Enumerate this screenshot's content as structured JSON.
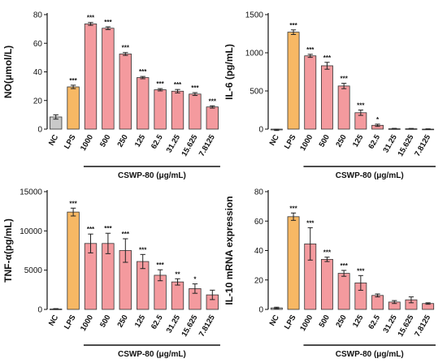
{
  "chart_data": [
    {
      "type": "bar",
      "ylabel": "NO(μmol/L)",
      "ylim": [
        0,
        80
      ],
      "yticks": [
        0,
        20,
        40,
        60,
        80
      ],
      "categories": [
        "NC",
        "LPS",
        "1000",
        "500",
        "250",
        "125",
        "62.5",
        "31.25",
        "15.625",
        "7.8125"
      ],
      "values": [
        8.5,
        29.5,
        73.5,
        70.5,
        52.5,
        36,
        27.5,
        26.5,
        24.5,
        15.5
      ],
      "errors": [
        1.5,
        1.2,
        1.0,
        1.0,
        1.0,
        0.8,
        0.8,
        1.2,
        1.0,
        0.8
      ],
      "significance": [
        "",
        "***",
        "***",
        "***",
        "***",
        "***",
        "***",
        "***",
        "***",
        "***"
      ],
      "bar_colors": [
        "#c9c9c9",
        "#f7b864",
        "#f49a9e",
        "#f49a9e",
        "#f49a9e",
        "#f49a9e",
        "#f49a9e",
        "#f49a9e",
        "#f49a9e",
        "#f49a9e"
      ],
      "group_label": "CSWP-80 (μg/mL)",
      "group_from": 2
    },
    {
      "type": "bar",
      "ylabel": "IL-6 (pg/mL)",
      "ylim": [
        0,
        1500
      ],
      "yticks": [
        0,
        500,
        1000,
        1500
      ],
      "categories": [
        "NC",
        "LPS",
        "1000",
        "500",
        "250",
        "125",
        "62.5",
        "31.25",
        "15.625",
        "7.8125"
      ],
      "values": [
        -10,
        1270,
        960,
        830,
        565,
        215,
        50,
        5,
        5,
        0
      ],
      "errors": [
        8,
        30,
        20,
        45,
        35,
        35,
        15,
        5,
        4,
        4
      ],
      "significance": [
        "",
        "***",
        "***",
        "***",
        "***",
        "***",
        "*",
        "",
        "",
        ""
      ],
      "bar_colors": [
        "#c9c9c9",
        "#f7b864",
        "#f49a9e",
        "#f49a9e",
        "#f49a9e",
        "#f49a9e",
        "#f49a9e",
        "#f49a9e",
        "#f49a9e",
        "#f49a9e"
      ],
      "group_label": "CSWP-80 (μg/mL)",
      "group_from": 2
    },
    {
      "type": "bar",
      "ylabel": "TNF-α(pg/mL)",
      "ylim": [
        0,
        15000
      ],
      "yticks": [
        0,
        5000,
        10000,
        15000
      ],
      "categories": [
        "NC",
        "LPS",
        "1000",
        "500",
        "250",
        "125",
        "62.5",
        "31.25",
        "15.625",
        "7.8125"
      ],
      "values": [
        50,
        12400,
        8400,
        8400,
        7500,
        6100,
        4350,
        3500,
        2650,
        1850
      ],
      "errors": [
        50,
        500,
        1200,
        1300,
        1500,
        900,
        700,
        400,
        600,
        600
      ],
      "significance": [
        "",
        "***",
        "***",
        "***",
        "***",
        "***",
        "***",
        "**",
        "*",
        ""
      ],
      "bar_colors": [
        "#c9c9c9",
        "#f7b864",
        "#f49a9e",
        "#f49a9e",
        "#f49a9e",
        "#f49a9e",
        "#f49a9e",
        "#f49a9e",
        "#f49a9e",
        "#f49a9e"
      ],
      "group_label": "CSWP-80 (μg/mL)",
      "group_from": 2
    },
    {
      "type": "bar",
      "ylabel": "IL-10 mRNA expression",
      "ylim": [
        0,
        80
      ],
      "yticks": [
        0,
        20,
        40,
        60,
        80
      ],
      "categories": [
        "NC",
        "LPS",
        "1000",
        "500",
        "250",
        "125",
        "62.5",
        "31.25",
        "15.625",
        "7.8125"
      ],
      "values": [
        1,
        63,
        44.5,
        34,
        24.5,
        18,
        9.5,
        5,
        6.5,
        4
      ],
      "errors": [
        0.5,
        2.5,
        11,
        1.5,
        2,
        5,
        1,
        1,
        2,
        0.5
      ],
      "significance": [
        "",
        "***",
        "***",
        "***",
        "***",
        "***",
        "",
        "",
        "",
        ""
      ],
      "bar_colors": [
        "#c9c9c9",
        "#f7b864",
        "#f49a9e",
        "#f49a9e",
        "#f49a9e",
        "#f49a9e",
        "#f49a9e",
        "#f49a9e",
        "#f49a9e",
        "#f49a9e"
      ],
      "group_label": "CSWP-80 (μg/mL)",
      "group_from": 2
    }
  ]
}
